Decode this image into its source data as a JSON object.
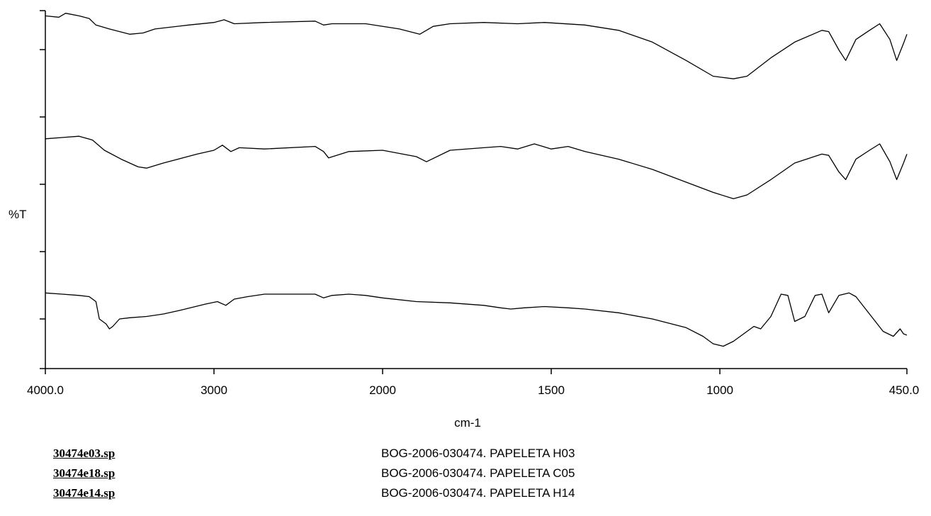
{
  "chart_data": {
    "type": "line",
    "title": "",
    "ylabel": "%T",
    "xlabel": "cm-1",
    "x_tick_labels": [
      "4000.0",
      "3000",
      "2000",
      "1500",
      "1000",
      "450.0"
    ],
    "y_tick_labels": [],
    "grid": false,
    "series": [
      {
        "name": "30474e03.sp",
        "description": "BOG-2006-030474. PAPELETA H03",
        "color": "#000000",
        "x": [
          4000,
          3920,
          3880,
          3800,
          3740,
          3700,
          3620,
          3500,
          3420,
          3350,
          3150,
          3000,
          2940,
          2880,
          2700,
          2400,
          2350,
          2300,
          2100,
          1950,
          1890,
          1850,
          1800,
          1700,
          1600,
          1520,
          1400,
          1300,
          1200,
          1100,
          1020,
          960,
          920,
          850,
          780,
          700,
          680,
          650,
          630,
          600,
          560,
          530,
          500,
          480,
          460,
          450
        ],
        "y": [
          96,
          95,
          98,
          96,
          94,
          89,
          86,
          82,
          83,
          86,
          89,
          91,
          93,
          90,
          91,
          92,
          89,
          90,
          90,
          86,
          82,
          88,
          90,
          91,
          90,
          91,
          89,
          85,
          76,
          62,
          50,
          48,
          50,
          64,
          76,
          85,
          84,
          70,
          62,
          78,
          85,
          90,
          78,
          62,
          75,
          82
        ]
      },
      {
        "name": "30474e18.sp",
        "description": "BOG-2006-030474. PAPELETA C05",
        "color": "#000000",
        "x": [
          4000,
          3900,
          3800,
          3720,
          3650,
          3550,
          3450,
          3400,
          3300,
          3100,
          3000,
          2950,
          2900,
          2850,
          2700,
          2400,
          2350,
          2320,
          2200,
          2000,
          1900,
          1870,
          1800,
          1700,
          1650,
          1600,
          1550,
          1500,
          1450,
          1400,
          1300,
          1200,
          1100,
          1020,
          960,
          920,
          850,
          780,
          700,
          680,
          650,
          630,
          600,
          560,
          530,
          500,
          480,
          460,
          450
        ],
        "y": [
          94,
          95,
          96,
          93,
          85,
          78,
          72,
          71,
          75,
          82,
          85,
          89,
          84,
          87,
          86,
          88,
          84,
          79,
          84,
          85,
          80,
          76,
          85,
          87,
          88,
          86,
          90,
          86,
          88,
          84,
          78,
          70,
          60,
          52,
          47,
          50,
          62,
          75,
          82,
          81,
          68,
          62,
          78,
          85,
          90,
          76,
          62,
          75,
          82
        ]
      },
      {
        "name": "30474e14.sp",
        "description": "BOG-2006-030474. PAPELETA H14",
        "color": "#000000",
        "x": [
          4000,
          3900,
          3800,
          3740,
          3700,
          3680,
          3660,
          3640,
          3620,
          3600,
          3560,
          3500,
          3400,
          3300,
          3200,
          3050,
          2980,
          2930,
          2880,
          2800,
          2700,
          2500,
          2400,
          2350,
          2300,
          2200,
          2100,
          2000,
          1900,
          1800,
          1700,
          1650,
          1620,
          1580,
          1520,
          1450,
          1400,
          1300,
          1200,
          1100,
          1050,
          1020,
          990,
          960,
          930,
          900,
          880,
          850,
          820,
          800,
          780,
          750,
          720,
          700,
          680,
          650,
          620,
          600,
          560,
          520,
          490,
          470,
          460,
          450
        ],
        "y": [
          61,
          60,
          59,
          58,
          54,
          40,
          38,
          36,
          32,
          34,
          40,
          41,
          42,
          44,
          47,
          52,
          54,
          51,
          56,
          58,
          60,
          60,
          60,
          57,
          59,
          60,
          59,
          57,
          54,
          53,
          51,
          49,
          48,
          49,
          50,
          49,
          48,
          45,
          40,
          33,
          26,
          20,
          18,
          22,
          28,
          34,
          32,
          42,
          60,
          59,
          38,
          42,
          59,
          60,
          45,
          59,
          61,
          58,
          44,
          30,
          26,
          32,
          28,
          27
        ]
      }
    ]
  }
}
